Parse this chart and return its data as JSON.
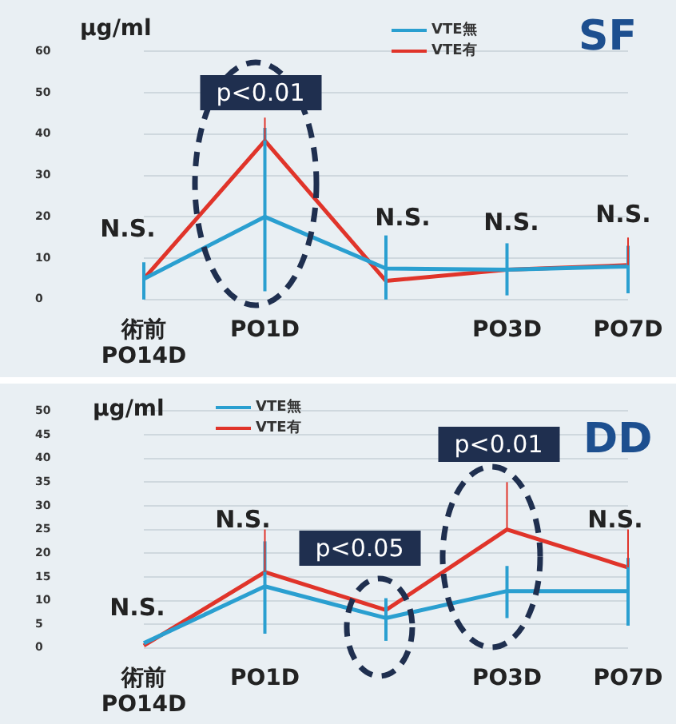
{
  "chart_data": [
    {
      "type": "line",
      "title": "SF",
      "ylabel": "μg/ml",
      "categories": [
        "術前\nPO14D",
        "PO1D",
        null,
        "PO3D",
        "PO7D"
      ],
      "series": [
        {
          "name": "VTE無",
          "color": "#2a9fd0",
          "values": [
            5,
            20,
            7.5,
            7.2,
            8
          ],
          "errors": [
            [
              0,
              9
            ],
            [
              2,
              41.5
            ],
            [
              0,
              15.5
            ],
            [
              1,
              13.6
            ],
            [
              1.5,
              13
            ]
          ]
        },
        {
          "name": "VTE有",
          "color": "#e0342a",
          "values": [
            5,
            38.4,
            4.5,
            7.2,
            8.3
          ],
          "errors": [
            null,
            [
              38.4,
              44
            ],
            null,
            null,
            [
              8.3,
              15
            ]
          ]
        }
      ],
      "ylim": [
        0,
        60
      ],
      "yticks": [
        0,
        10,
        20,
        30,
        40,
        50,
        60
      ],
      "grid": "y",
      "legend": "top",
      "marker": "none",
      "line_style": "solid",
      "annotations": [
        "N.S.",
        "p<0.01",
        "N.S.",
        "N.S.",
        "N.S."
      ]
    },
    {
      "type": "line",
      "title": "DD",
      "ylabel": "μg/ml",
      "categories": [
        "術前\nPO14D",
        "PO1D",
        null,
        "PO3D",
        "PO7D"
      ],
      "series": [
        {
          "name": "VTE無",
          "color": "#2a9fd0",
          "values": [
            1,
            13,
            6.3,
            12,
            12
          ],
          "errors": [
            null,
            [
              3,
              22.5
            ],
            [
              1.5,
              10.5
            ],
            [
              6.3,
              17.3
            ],
            [
              4.7,
              19
            ]
          ]
        },
        {
          "name": "VTE有",
          "color": "#e0342a",
          "values": [
            0.5,
            16,
            8,
            25,
            17
          ],
          "errors": [
            null,
            [
              16,
              25
            ],
            null,
            [
              25,
              35
            ],
            [
              17,
              25
            ]
          ]
        }
      ],
      "ylim": [
        0,
        50
      ],
      "yticks": [
        0,
        5,
        10,
        15,
        20,
        25,
        30,
        35,
        40,
        45,
        50
      ],
      "grid": "y",
      "legend": "top left",
      "marker": "none",
      "line_style": "solid",
      "annotations": [
        "N.S.",
        "N.S.",
        "p<0.05",
        "p<0.01",
        "N.S."
      ]
    }
  ]
}
